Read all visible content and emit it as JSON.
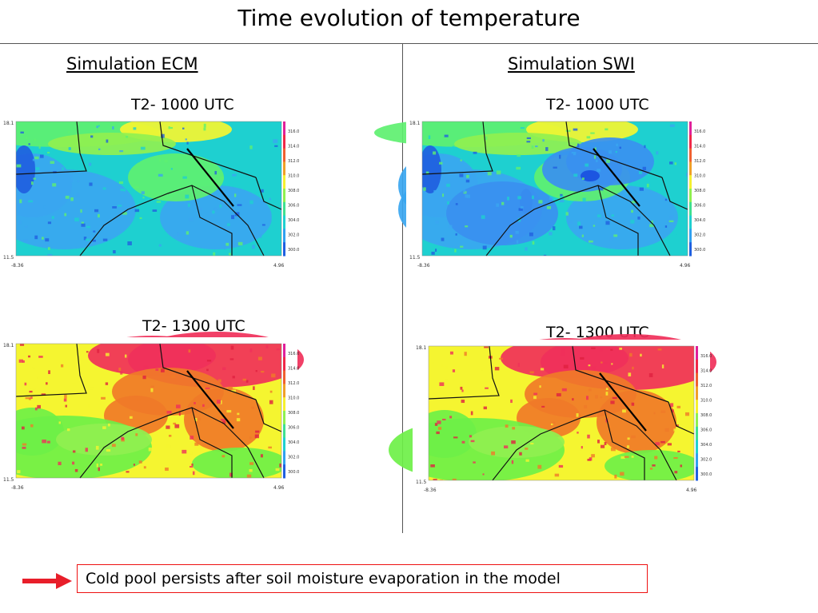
{
  "title": "Time evolution of temperature",
  "columns": [
    {
      "heading": "Simulation ECM"
    },
    {
      "heading": "Simulation SWI"
    }
  ],
  "chart_data": [
    {
      "type": "heatmap",
      "simulation": "Simulation ECM",
      "title": "T2- 1000 UTC",
      "ylim": [
        11.5,
        18.1
      ],
      "xlim": [
        -8.36,
        4.96
      ],
      "x_tick_labels": [
        "-8.36",
        "4.96"
      ],
      "y_tick_labels": [
        "18.1",
        "11.5"
      ],
      "colorbar": {
        "labels": [
          "316.0",
          "314.0",
          "312.0",
          "310.0",
          "308.0",
          "306.0",
          "304.0",
          "302.0",
          "300.0"
        ]
      },
      "dominant_colors": [
        "#1ed0d0",
        "#3aa6f0",
        "#5ef070",
        "#f5f530"
      ]
    },
    {
      "type": "heatmap",
      "simulation": "Simulation SWI",
      "title": "T2- 1000 UTC",
      "ylim": [
        11.5,
        18.1
      ],
      "xlim": [
        -8.36,
        4.96
      ],
      "x_tick_labels": [
        "-8.36",
        "4.96"
      ],
      "y_tick_labels": [
        "18.1",
        "11.5"
      ],
      "colorbar": {
        "labels": [
          "316.0",
          "314.0",
          "312.0",
          "310.0",
          "308.0",
          "306.0",
          "304.0",
          "302.0",
          "300.0"
        ]
      },
      "dominant_colors": [
        "#1ed0d0",
        "#3a90f0",
        "#5ef070",
        "#1a50e0"
      ]
    },
    {
      "type": "heatmap",
      "simulation": "Simulation ECM",
      "title": "T2- 1300 UTC",
      "ylim": [
        11.5,
        18.1
      ],
      "xlim": [
        -8.36,
        4.96
      ],
      "x_tick_labels": [
        "-8.36",
        "4.96"
      ],
      "y_tick_labels": [
        "18.1",
        "11.5"
      ],
      "colorbar": {
        "labels": [
          "316.0",
          "314.0",
          "312.0",
          "310.0",
          "308.0",
          "306.0",
          "304.0",
          "302.0",
          "300.0"
        ]
      },
      "dominant_colors": [
        "#f0305a",
        "#f07a28",
        "#f5f530",
        "#6ef048"
      ]
    },
    {
      "type": "heatmap",
      "simulation": "Simulation SWI",
      "title": "T2- 1300 UTC",
      "ylim": [
        11.5,
        18.1
      ],
      "xlim": [
        -8.36,
        4.96
      ],
      "x_tick_labels": [
        "-8.36",
        "4.96"
      ],
      "y_tick_labels": [
        "18.1",
        "11.5"
      ],
      "colorbar": {
        "labels": [
          "316.0",
          "314.0",
          "312.0",
          "310.0",
          "308.0",
          "306.0",
          "304.0",
          "302.0",
          "300.0"
        ]
      },
      "dominant_colors": [
        "#f0305a",
        "#f07a28",
        "#f5f530",
        "#6ef048"
      ]
    }
  ],
  "callout": {
    "text": "Cold pool persists after soil moisture evaporation in the model",
    "arrow_color": "#e81e2a"
  }
}
